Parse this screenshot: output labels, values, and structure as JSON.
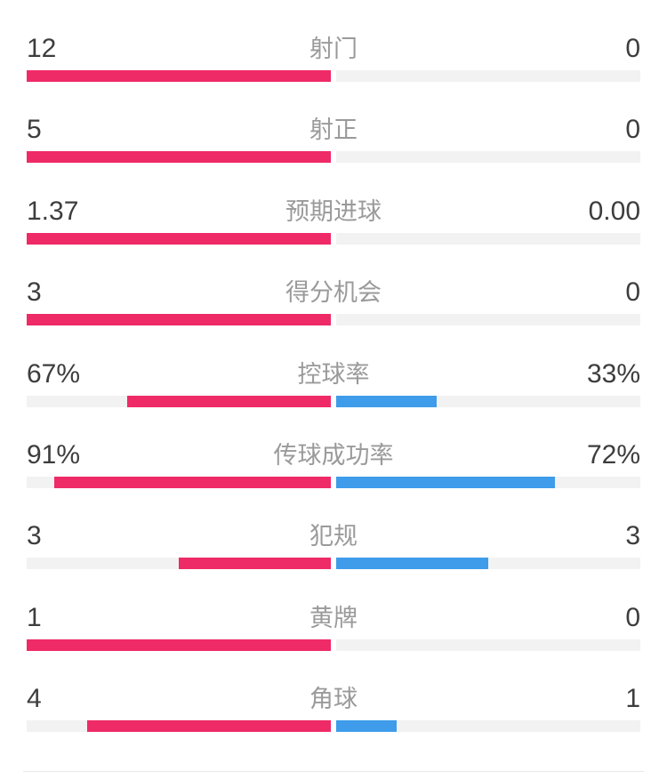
{
  "colors": {
    "home": "#EE2A67",
    "away": "#3E9CEA",
    "track": "#F2F2F2",
    "value-text": "#3D3D3D",
    "label-text": "#9A9A9A",
    "divider": "#E9E9E9"
  },
  "stats": {
    "rows": [
      {
        "label": "射门",
        "home_display": "12",
        "away_display": "0",
        "home_fill_pct": 100,
        "away_fill_pct": 0
      },
      {
        "label": "射正",
        "home_display": "5",
        "away_display": "0",
        "home_fill_pct": 100,
        "away_fill_pct": 0
      },
      {
        "label": "预期进球",
        "home_display": "1.37",
        "away_display": "0.00",
        "home_fill_pct": 100,
        "away_fill_pct": 0
      },
      {
        "label": "得分机会",
        "home_display": "3",
        "away_display": "0",
        "home_fill_pct": 100,
        "away_fill_pct": 0
      },
      {
        "label": "控球率",
        "home_display": "67%",
        "away_display": "33%",
        "home_fill_pct": 67,
        "away_fill_pct": 33
      },
      {
        "label": "传球成功率",
        "home_display": "91%",
        "away_display": "72%",
        "home_fill_pct": 91,
        "away_fill_pct": 72
      },
      {
        "label": "犯规",
        "home_display": "3",
        "away_display": "3",
        "home_fill_pct": 50,
        "away_fill_pct": 50
      },
      {
        "label": "黄牌",
        "home_display": "1",
        "away_display": "0",
        "home_fill_pct": 100,
        "away_fill_pct": 0
      },
      {
        "label": "角球",
        "home_display": "4",
        "away_display": "1",
        "home_fill_pct": 80,
        "away_fill_pct": 20
      }
    ]
  },
  "chart_data": {
    "type": "bar",
    "subtype": "paired-horizontal-comparison",
    "categories": [
      "射门",
      "射正",
      "预期进球",
      "得分机会",
      "控球率",
      "传球成功率",
      "犯规",
      "黄牌",
      "角球"
    ],
    "series": [
      {
        "name": "home",
        "color": "#EE2A67",
        "values": [
          12,
          5,
          1.37,
          3,
          67,
          91,
          3,
          1,
          4
        ]
      },
      {
        "name": "away",
        "color": "#3E9CEA",
        "values": [
          0,
          0,
          0.0,
          0,
          33,
          72,
          3,
          0,
          1
        ]
      }
    ],
    "percentage_categories": [
      "控球率",
      "传球成功率"
    ],
    "layout": {
      "bars_split_at_center": true,
      "home_anchored_right_of_left_half": true,
      "away_anchored_left_of_right_half": true,
      "grid": false,
      "legend": "none"
    }
  }
}
